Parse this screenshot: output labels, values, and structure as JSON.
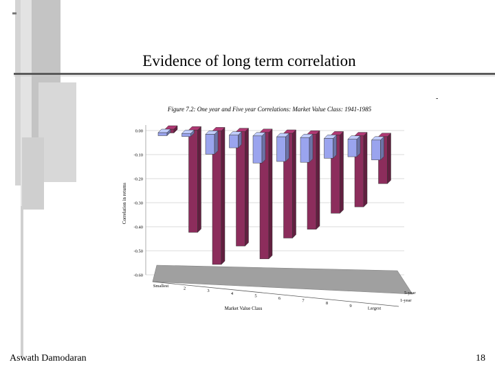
{
  "slide": {
    "title": "Evidence of long term correlation",
    "dash": "-",
    "author": "Aswath Damodaran",
    "page_number": "18"
  },
  "colors": {
    "one_year": "#8c2d5c",
    "five_year": "#9aa4ee",
    "decor_gray": "#bdbdbd"
  },
  "chart_data": {
    "type": "bar",
    "title": "Figure 7.2: One year and Five year Correlations: Market Value Class: 1941-1985",
    "xlabel": "Market Value Class",
    "ylabel": "Correlation in returns",
    "ylim": [
      -0.6,
      0.0
    ],
    "yticks": [
      "0.00",
      "-0.10",
      "-0.20",
      "-0.30",
      "-0.40",
      "-0.50",
      "-0.60"
    ],
    "categories": [
      "Smallest",
      "2",
      "3",
      "4",
      "5",
      "6",
      "7",
      "8",
      "9",
      "Largest"
    ],
    "series": [
      {
        "name": "1-year",
        "values": [
          -0.01,
          -0.42,
          -0.55,
          -0.47,
          -0.52,
          -0.43,
          -0.39,
          -0.32,
          -0.29,
          -0.19
        ]
      },
      {
        "name": "5-year",
        "values": [
          -0.01,
          -0.01,
          -0.08,
          -0.05,
          -0.11,
          -0.1,
          -0.1,
          -0.08,
          -0.07,
          -0.08
        ]
      }
    ],
    "grid": true
  }
}
